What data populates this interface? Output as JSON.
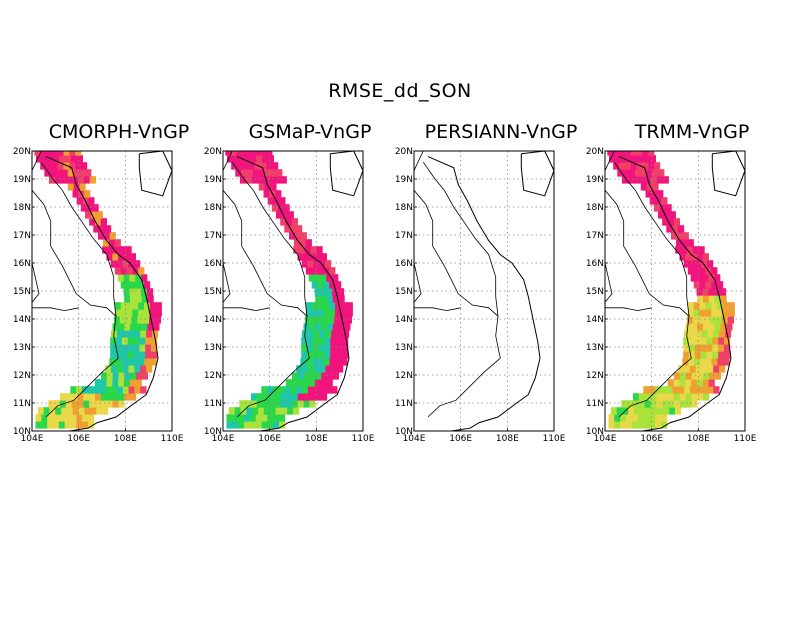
{
  "title": "RMSE_dd_SON",
  "panels": [
    {
      "title": "CMORPH-VnGP"
    },
    {
      "title": "GSMaP-VnGP"
    },
    {
      "title": "PERSIANN-VnGP"
    },
    {
      "title": "TRMM-VnGP"
    }
  ],
  "axes": {
    "lat_ticks": [
      "10N",
      "11N",
      "12N",
      "13N",
      "14N",
      "15N",
      "16N",
      "17N",
      "18N",
      "19N",
      "20N"
    ],
    "lon_ticks": [
      "104E",
      "106E",
      "108E",
      "110E"
    ],
    "lat_range": [
      10,
      20
    ],
    "lon_range": [
      104,
      110
    ],
    "grid": "dotted"
  },
  "colors": {
    "low": "#1fc6a8",
    "mid_low": "#2ad64a",
    "mid": "#a8e23a",
    "mid_high": "#e8d84a",
    "high": "#f0a030",
    "very_high": "#f0406a",
    "max": "#f0147c"
  }
}
